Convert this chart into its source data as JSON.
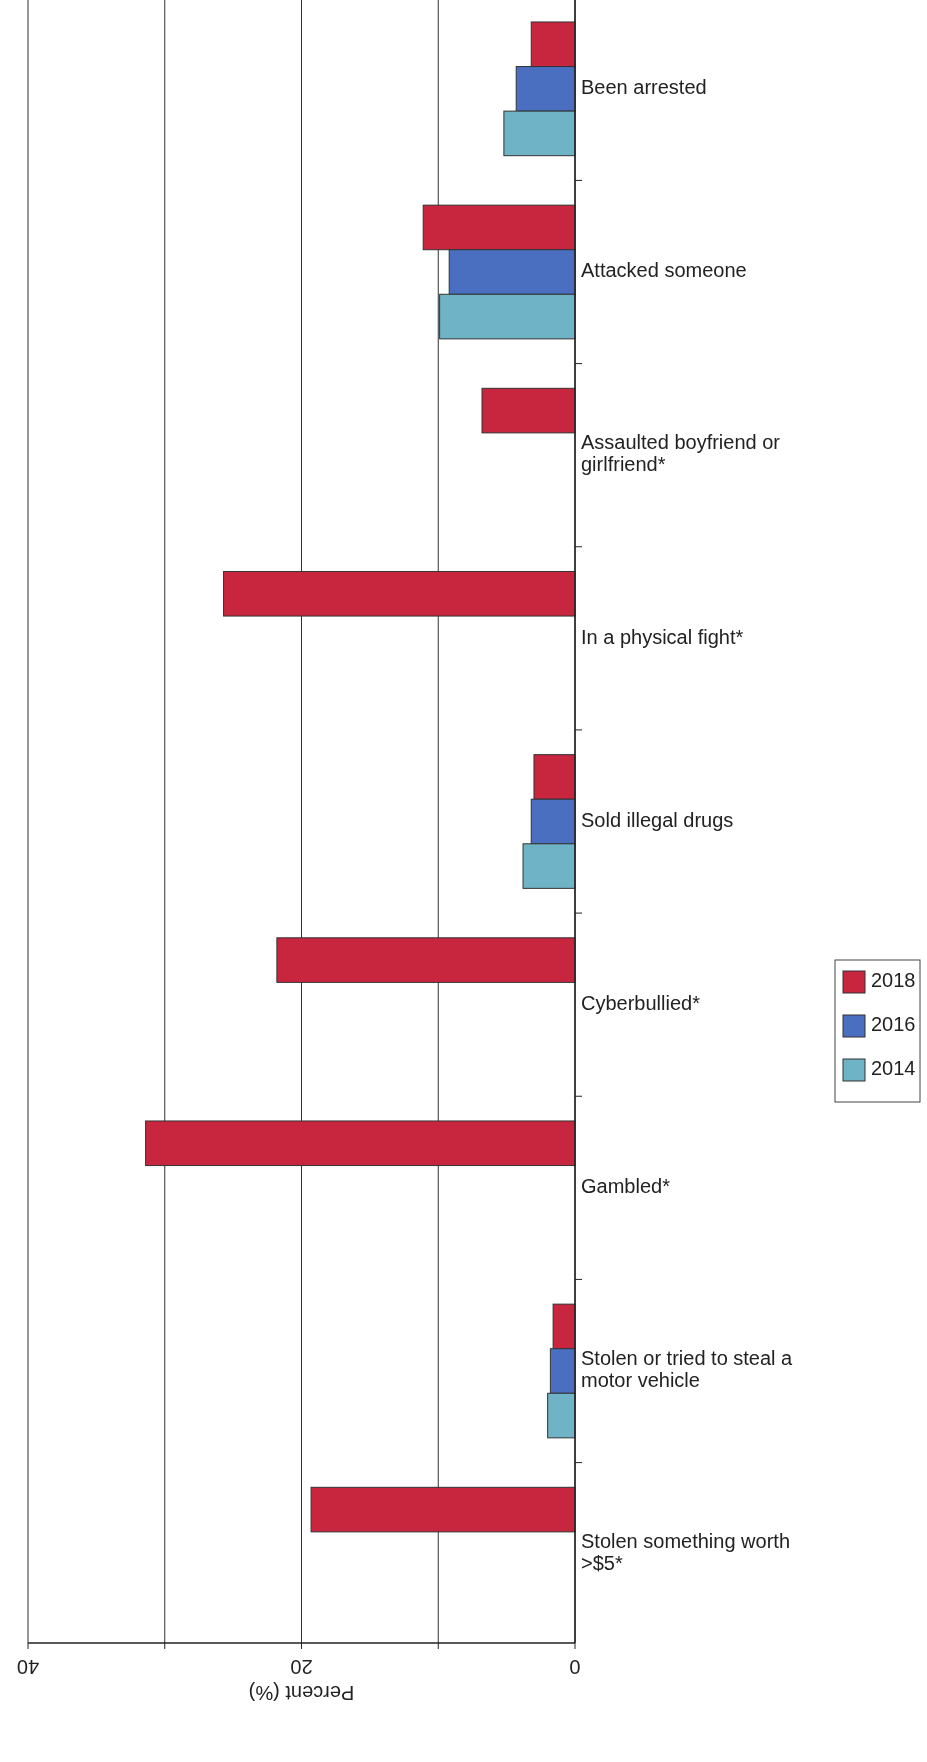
{
  "chart_data": {
    "type": "bar",
    "orientation": "horizontal",
    "xlabel": "Percent (%)",
    "categories": [
      "Been arrested",
      "Attacked someone",
      "Assaulted boyfriend or girlfriend*",
      "In a physical fight*",
      "Sold illegal drugs",
      "Cyberbullied*",
      "Gambled*",
      "Stolen or tried to steal a motor vehicle",
      "Stolen something worth >$5*"
    ],
    "series": [
      {
        "name": "2018",
        "color": "#c8253f",
        "values": [
          3.2,
          11.1,
          6.8,
          25.7,
          3.0,
          21.8,
          31.4,
          1.6,
          19.3
        ]
      },
      {
        "name": "2016",
        "color": "#4a6fc0",
        "values": [
          4.3,
          9.2,
          null,
          null,
          3.2,
          null,
          null,
          1.8,
          null
        ]
      },
      {
        "name": "2014",
        "color": "#6fb3c6",
        "values": [
          5.2,
          9.9,
          null,
          null,
          3.8,
          null,
          null,
          2.0,
          null
        ]
      }
    ],
    "xlim": [
      40,
      0
    ],
    "xticks": [
      40,
      {
        "value": 30,
        "label": null
      },
      20,
      {
        "value": 10,
        "label": null
      },
      0
    ],
    "grid": "x",
    "legend": "right"
  }
}
